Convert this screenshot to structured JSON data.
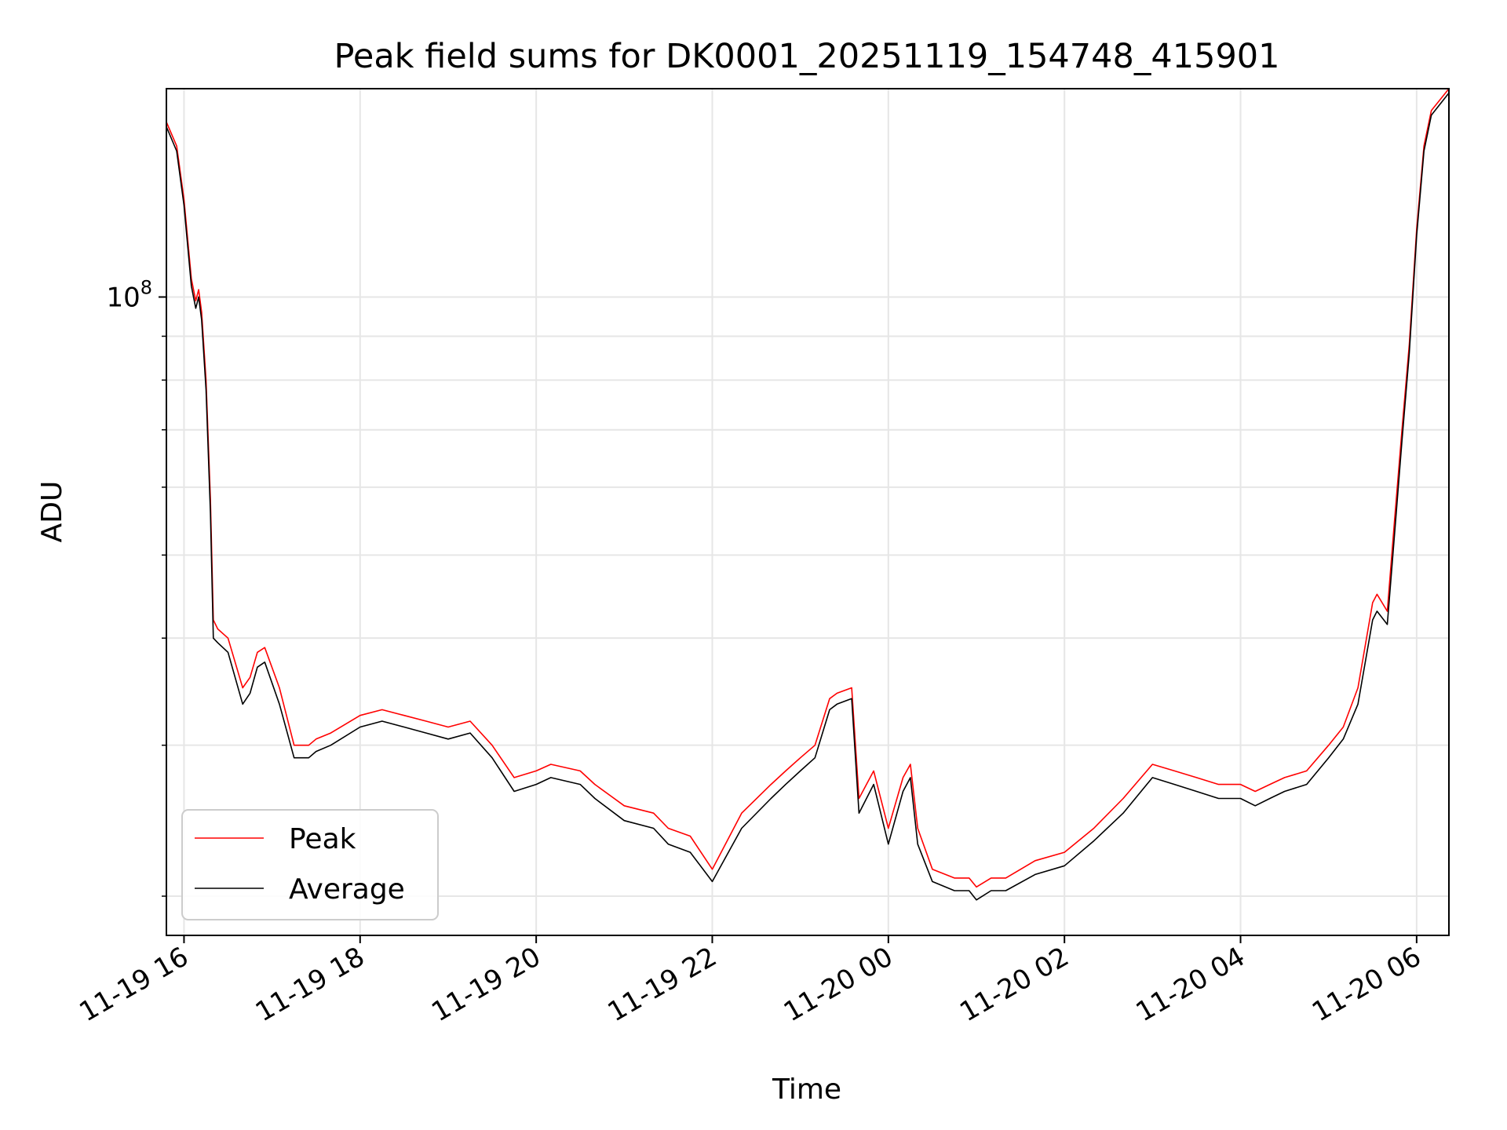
{
  "chart_data": {
    "type": "line",
    "title": "Peak field sums for DK0001_20251119_154748_415901",
    "xlabel": "Time",
    "ylabel": "ADU",
    "yscale": "log",
    "ylim": [
      18000000,
      175000000
    ],
    "xlim": [
      "2025-11-19 15:48",
      "2025-11-20 06:22"
    ],
    "x_ticks": [
      "2025-11-19 16:00",
      "2025-11-19 18:00",
      "2025-11-19 20:00",
      "2025-11-19 22:00",
      "2025-11-20 00:00",
      "2025-11-20 02:00",
      "2025-11-20 04:00",
      "2025-11-20 06:00"
    ],
    "x_tick_labels": [
      "11-19 16",
      "11-19 18",
      "11-19 20",
      "11-19 22",
      "11-20 00",
      "11-20 02",
      "11-20 04",
      "11-20 06"
    ],
    "y_tick_label": {
      "base": "10",
      "exp": "8"
    },
    "grid": true,
    "legend_position": "lower-left",
    "series": [
      {
        "name": "Peak",
        "color": "#ff0000",
        "x": [
          "2025-11-19 15:48",
          "2025-11-19 15:55",
          "2025-11-19 16:00",
          "2025-11-19 16:05",
          "2025-11-19 16:08",
          "2025-11-19 16:10",
          "2025-11-19 16:12",
          "2025-11-19 16:15",
          "2025-11-19 16:18",
          "2025-11-19 16:20",
          "2025-11-19 16:23",
          "2025-11-19 16:30",
          "2025-11-19 16:40",
          "2025-11-19 16:45",
          "2025-11-19 16:50",
          "2025-11-19 16:55",
          "2025-11-19 17:05",
          "2025-11-19 17:15",
          "2025-11-19 17:25",
          "2025-11-19 17:30",
          "2025-11-19 17:40",
          "2025-11-19 18:00",
          "2025-11-19 18:15",
          "2025-11-19 18:30",
          "2025-11-19 18:45",
          "2025-11-19 19:00",
          "2025-11-19 19:15",
          "2025-11-19 19:30",
          "2025-11-19 19:45",
          "2025-11-19 20:00",
          "2025-11-19 20:10",
          "2025-11-19 20:30",
          "2025-11-19 20:40",
          "2025-11-19 21:00",
          "2025-11-19 21:20",
          "2025-11-19 21:30",
          "2025-11-19 21:45",
          "2025-11-19 22:00",
          "2025-11-19 22:20",
          "2025-11-19 22:40",
          "2025-11-19 22:50",
          "2025-11-19 23:00",
          "2025-11-19 23:10",
          "2025-11-19 23:20",
          "2025-11-19 23:25",
          "2025-11-19 23:35",
          "2025-11-19 23:40",
          "2025-11-19 23:50",
          "2025-11-20 00:00",
          "2025-11-20 00:10",
          "2025-11-20 00:15",
          "2025-11-20 00:20",
          "2025-11-20 00:30",
          "2025-11-20 00:45",
          "2025-11-20 00:55",
          "2025-11-20 01:00",
          "2025-11-20 01:10",
          "2025-11-20 01:20",
          "2025-11-20 01:40",
          "2025-11-20 02:00",
          "2025-11-20 02:20",
          "2025-11-20 02:40",
          "2025-11-20 03:00",
          "2025-11-20 03:15",
          "2025-11-20 03:30",
          "2025-11-20 03:45",
          "2025-11-20 04:00",
          "2025-11-20 04:10",
          "2025-11-20 04:20",
          "2025-11-20 04:30",
          "2025-11-20 04:45",
          "2025-11-20 05:00",
          "2025-11-20 05:10",
          "2025-11-20 05:20",
          "2025-11-20 05:30",
          "2025-11-20 05:33",
          "2025-11-20 05:40",
          "2025-11-20 05:45",
          "2025-11-20 05:50",
          "2025-11-20 05:55",
          "2025-11-20 06:00",
          "2025-11-20 06:05",
          "2025-11-20 06:10",
          "2025-11-20 06:22"
        ],
        "y": [
          160000000,
          150000000,
          130000000,
          105000000,
          99000000,
          102000000,
          96000000,
          80000000,
          58000000,
          42000000,
          41000000,
          40000000,
          35000000,
          36000000,
          38500000,
          39000000,
          35000000,
          30000000,
          30000000,
          30500000,
          31000000,
          32500000,
          33000000,
          32500000,
          32000000,
          31500000,
          32000000,
          30000000,
          27500000,
          28000000,
          28500000,
          28000000,
          27000000,
          25500000,
          25000000,
          24000000,
          23500000,
          21500000,
          25000000,
          27000000,
          28000000,
          29000000,
          30000000,
          34000000,
          34500000,
          35000000,
          26000000,
          28000000,
          24000000,
          27500000,
          28500000,
          24000000,
          21500000,
          21000000,
          21000000,
          20500000,
          21000000,
          21000000,
          22000000,
          22500000,
          24000000,
          26000000,
          28500000,
          28000000,
          27500000,
          27000000,
          27000000,
          26500000,
          27000000,
          27500000,
          28000000,
          30000000,
          31500000,
          35000000,
          44000000,
          45000000,
          43000000,
          55000000,
          70000000,
          88000000,
          120000000,
          150000000,
          165000000,
          175000000
        ]
      },
      {
        "name": "Average",
        "color": "#000000",
        "x": [
          "2025-11-19 15:48",
          "2025-11-19 15:55",
          "2025-11-19 16:00",
          "2025-11-19 16:05",
          "2025-11-19 16:08",
          "2025-11-19 16:10",
          "2025-11-19 16:12",
          "2025-11-19 16:15",
          "2025-11-19 16:18",
          "2025-11-19 16:20",
          "2025-11-19 16:23",
          "2025-11-19 16:30",
          "2025-11-19 16:40",
          "2025-11-19 16:45",
          "2025-11-19 16:50",
          "2025-11-19 16:55",
          "2025-11-19 17:05",
          "2025-11-19 17:15",
          "2025-11-19 17:25",
          "2025-11-19 17:30",
          "2025-11-19 17:40",
          "2025-11-19 18:00",
          "2025-11-19 18:15",
          "2025-11-19 18:30",
          "2025-11-19 18:45",
          "2025-11-19 19:00",
          "2025-11-19 19:15",
          "2025-11-19 19:30",
          "2025-11-19 19:45",
          "2025-11-19 20:00",
          "2025-11-19 20:10",
          "2025-11-19 20:30",
          "2025-11-19 20:40",
          "2025-11-19 21:00",
          "2025-11-19 21:20",
          "2025-11-19 21:30",
          "2025-11-19 21:45",
          "2025-11-19 22:00",
          "2025-11-19 22:20",
          "2025-11-19 22:40",
          "2025-11-19 22:50",
          "2025-11-19 23:00",
          "2025-11-19 23:10",
          "2025-11-19 23:20",
          "2025-11-19 23:25",
          "2025-11-19 23:35",
          "2025-11-19 23:40",
          "2025-11-19 23:50",
          "2025-11-20 00:00",
          "2025-11-20 00:10",
          "2025-11-20 00:15",
          "2025-11-20 00:20",
          "2025-11-20 00:30",
          "2025-11-20 00:45",
          "2025-11-20 00:55",
          "2025-11-20 01:00",
          "2025-11-20 01:10",
          "2025-11-20 01:20",
          "2025-11-20 01:40",
          "2025-11-20 02:00",
          "2025-11-20 02:20",
          "2025-11-20 02:40",
          "2025-11-20 03:00",
          "2025-11-20 03:15",
          "2025-11-20 03:30",
          "2025-11-20 03:45",
          "2025-11-20 04:00",
          "2025-11-20 04:10",
          "2025-11-20 04:20",
          "2025-11-20 04:30",
          "2025-11-20 04:45",
          "2025-11-20 05:00",
          "2025-11-20 05:10",
          "2025-11-20 05:20",
          "2025-11-20 05:30",
          "2025-11-20 05:33",
          "2025-11-20 05:40",
          "2025-11-20 05:45",
          "2025-11-20 05:50",
          "2025-11-20 05:55",
          "2025-11-20 06:00",
          "2025-11-20 06:05",
          "2025-11-20 06:10",
          "2025-11-20 06:22"
        ],
        "y": [
          158000000,
          148000000,
          128000000,
          103000000,
          97000000,
          100000000,
          94000000,
          78000000,
          56000000,
          40000000,
          39500000,
          38500000,
          33500000,
          34500000,
          37000000,
          37500000,
          33500000,
          29000000,
          29000000,
          29500000,
          30000000,
          31500000,
          32000000,
          31500000,
          31000000,
          30500000,
          31000000,
          29000000,
          26500000,
          27000000,
          27500000,
          27000000,
          26000000,
          24500000,
          24000000,
          23000000,
          22500000,
          20800000,
          24000000,
          26000000,
          27000000,
          28000000,
          29000000,
          33000000,
          33500000,
          34000000,
          25000000,
          27000000,
          23000000,
          26500000,
          27500000,
          23000000,
          20800000,
          20300000,
          20300000,
          19800000,
          20300000,
          20300000,
          21200000,
          21700000,
          23200000,
          25000000,
          27500000,
          27000000,
          26500000,
          26000000,
          26000000,
          25500000,
          26000000,
          26500000,
          27000000,
          29000000,
          30500000,
          33500000,
          42000000,
          43000000,
          41500000,
          53000000,
          68000000,
          86000000,
          118000000,
          148000000,
          163000000,
          173000000
        ]
      }
    ]
  }
}
